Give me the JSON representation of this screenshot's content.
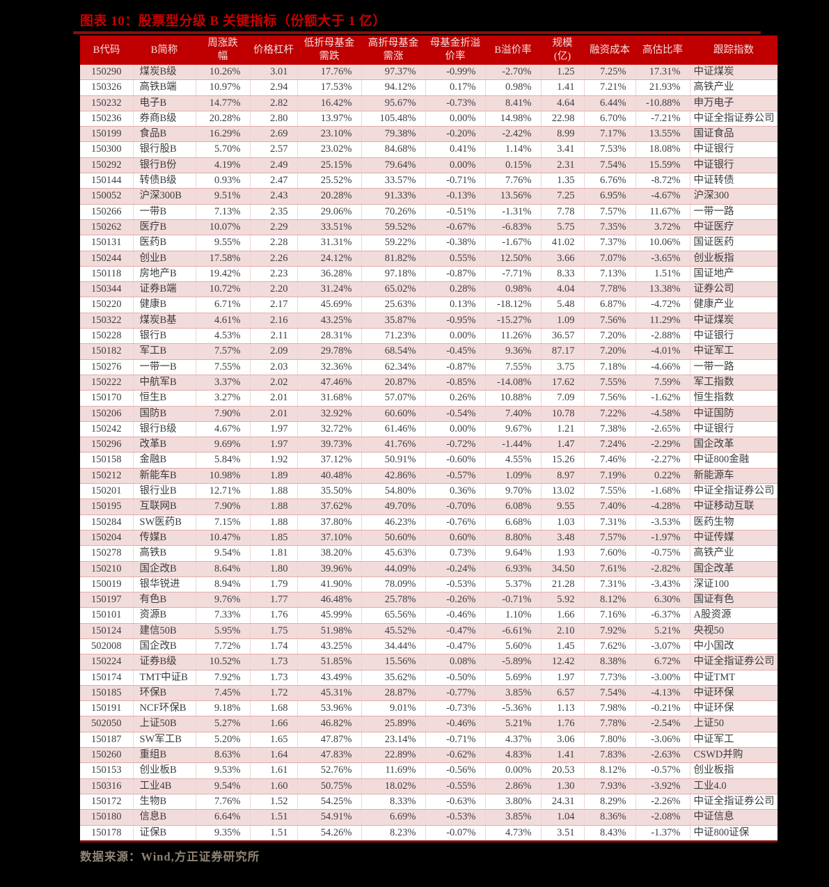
{
  "title": "图表 10：股票型分级 B 关键指标（份额大于 1 亿）",
  "source_note": "数据来源：Wind,方正证券研究所",
  "colors": {
    "page_background": "#000000",
    "title_red": "#cc0000",
    "header_background": "#c00000",
    "header_text": "#f3dedd",
    "row_pink": "#f2dcdb",
    "row_white": "#ffffff",
    "row_border": "#e0aca9",
    "table_rule_dark_red": "#8e0d0d",
    "cell_text": "#3d3d3d",
    "source_text": "#8d8474"
  },
  "table": {
    "columns": [
      {
        "key": "code",
        "label": "B代码"
      },
      {
        "key": "name",
        "label": "B简称"
      },
      {
        "key": "weekly",
        "label": "周涨跌\n幅"
      },
      {
        "key": "lever",
        "label": "价格杠杆"
      },
      {
        "key": "low",
        "label": "低折母基金\n需跌"
      },
      {
        "key": "high",
        "label": "高折母基金\n需涨"
      },
      {
        "key": "parent",
        "label": "母基金折溢\n价率"
      },
      {
        "key": "bprem",
        "label": "B溢价率"
      },
      {
        "key": "scale",
        "label": "规模\n(亿)"
      },
      {
        "key": "fin",
        "label": "融资成本"
      },
      {
        "key": "over",
        "label": "高估比率"
      },
      {
        "key": "index",
        "label": "跟踪指数"
      }
    ],
    "rows": [
      [
        "150290",
        "煤炭B级",
        "10.26%",
        "3.01",
        "17.76%",
        "97.37%",
        "-0.99%",
        "-2.70%",
        "1.25",
        "7.25%",
        "17.31%",
        "中证煤炭"
      ],
      [
        "150326",
        "高铁B端",
        "10.97%",
        "2.94",
        "17.53%",
        "94.12%",
        "0.17%",
        "0.98%",
        "1.41",
        "7.21%",
        "21.93%",
        "高铁产业"
      ],
      [
        "150232",
        "电子B",
        "14.77%",
        "2.82",
        "16.42%",
        "95.67%",
        "-0.73%",
        "8.41%",
        "4.64",
        "6.44%",
        "-10.88%",
        "申万电子"
      ],
      [
        "150236",
        "券商B级",
        "20.28%",
        "2.80",
        "13.97%",
        "105.48%",
        "0.00%",
        "14.98%",
        "22.98",
        "6.70%",
        "-7.21%",
        "中证全指证券公司"
      ],
      [
        "150199",
        "食品B",
        "16.29%",
        "2.69",
        "23.10%",
        "79.38%",
        "-0.20%",
        "-2.42%",
        "8.99",
        "7.17%",
        "13.55%",
        "国证食品"
      ],
      [
        "150300",
        "银行股B",
        "5.70%",
        "2.57",
        "23.02%",
        "84.68%",
        "0.41%",
        "1.14%",
        "3.41",
        "7.53%",
        "18.08%",
        "中证银行"
      ],
      [
        "150292",
        "银行B份",
        "4.19%",
        "2.49",
        "25.15%",
        "79.64%",
        "0.00%",
        "0.15%",
        "2.31",
        "7.54%",
        "15.59%",
        "中证银行"
      ],
      [
        "150144",
        "转债B级",
        "0.93%",
        "2.47",
        "25.52%",
        "33.57%",
        "-0.71%",
        "7.76%",
        "1.35",
        "6.76%",
        "-8.72%",
        "中证转债"
      ],
      [
        "150052",
        "沪深300B",
        "9.51%",
        "2.43",
        "20.28%",
        "91.33%",
        "-0.13%",
        "13.56%",
        "7.25",
        "6.95%",
        "-4.67%",
        "沪深300"
      ],
      [
        "150266",
        "一带B",
        "7.13%",
        "2.35",
        "29.06%",
        "70.26%",
        "-0.51%",
        "-1.31%",
        "7.78",
        "7.57%",
        "11.67%",
        "一带一路"
      ],
      [
        "150262",
        "医疗B",
        "10.07%",
        "2.29",
        "33.51%",
        "59.52%",
        "-0.67%",
        "-6.83%",
        "5.75",
        "7.35%",
        "3.72%",
        "中证医疗"
      ],
      [
        "150131",
        "医药B",
        "9.55%",
        "2.28",
        "31.31%",
        "59.22%",
        "-0.38%",
        "-1.67%",
        "41.02",
        "7.37%",
        "10.06%",
        "国证医药"
      ],
      [
        "150244",
        "创业B",
        "17.58%",
        "2.26",
        "24.12%",
        "81.82%",
        "0.55%",
        "12.50%",
        "3.66",
        "7.07%",
        "-3.65%",
        "创业板指"
      ],
      [
        "150118",
        "房地产B",
        "19.42%",
        "2.23",
        "36.28%",
        "97.18%",
        "-0.87%",
        "-7.71%",
        "8.33",
        "7.13%",
        "1.51%",
        "国证地产"
      ],
      [
        "150344",
        "证券B端",
        "10.72%",
        "2.20",
        "31.24%",
        "65.02%",
        "0.28%",
        "0.98%",
        "4.04",
        "7.78%",
        "13.38%",
        "证券公司"
      ],
      [
        "150220",
        "健康B",
        "6.71%",
        "2.17",
        "45.69%",
        "25.63%",
        "0.13%",
        "-18.12%",
        "5.48",
        "6.87%",
        "-4.72%",
        "健康产业"
      ],
      [
        "150322",
        "煤炭B基",
        "4.61%",
        "2.16",
        "43.25%",
        "35.87%",
        "-0.95%",
        "-15.27%",
        "1.09",
        "7.56%",
        "11.29%",
        "中证煤炭"
      ],
      [
        "150228",
        "银行B",
        "4.53%",
        "2.11",
        "28.31%",
        "71.23%",
        "0.00%",
        "11.26%",
        "36.57",
        "7.20%",
        "-2.88%",
        "中证银行"
      ],
      [
        "150182",
        "军工B",
        "7.57%",
        "2.09",
        "29.78%",
        "68.54%",
        "-0.45%",
        "9.36%",
        "87.17",
        "7.20%",
        "-4.01%",
        "中证军工"
      ],
      [
        "150276",
        "一带一B",
        "7.55%",
        "2.03",
        "32.36%",
        "62.34%",
        "-0.87%",
        "7.55%",
        "3.75",
        "7.18%",
        "-4.66%",
        "一带一路"
      ],
      [
        "150222",
        "中航军B",
        "3.37%",
        "2.02",
        "47.46%",
        "20.87%",
        "-0.85%",
        "-14.08%",
        "17.62",
        "7.55%",
        "7.59%",
        "军工指数"
      ],
      [
        "150170",
        "恒生B",
        "3.27%",
        "2.01",
        "31.68%",
        "57.07%",
        "0.26%",
        "10.88%",
        "7.09",
        "7.56%",
        "-1.62%",
        "恒生指数"
      ],
      [
        "150206",
        "国防B",
        "7.90%",
        "2.01",
        "32.92%",
        "60.60%",
        "-0.54%",
        "7.40%",
        "10.78",
        "7.22%",
        "-4.58%",
        "中证国防"
      ],
      [
        "150242",
        "银行B级",
        "4.67%",
        "1.97",
        "32.72%",
        "61.46%",
        "0.00%",
        "9.67%",
        "1.21",
        "7.38%",
        "-2.65%",
        "中证银行"
      ],
      [
        "150296",
        "改革B",
        "9.69%",
        "1.97",
        "39.73%",
        "41.76%",
        "-0.72%",
        "-1.44%",
        "1.47",
        "7.24%",
        "-2.29%",
        "国企改革"
      ],
      [
        "150158",
        "金融B",
        "5.84%",
        "1.92",
        "37.12%",
        "50.91%",
        "-0.60%",
        "4.55%",
        "15.26",
        "7.46%",
        "-2.27%",
        "中证800金融"
      ],
      [
        "150212",
        "新能车B",
        "10.98%",
        "1.89",
        "40.48%",
        "42.86%",
        "-0.57%",
        "1.09%",
        "8.97",
        "7.19%",
        "0.22%",
        "新能源车"
      ],
      [
        "150201",
        "银行业B",
        "12.71%",
        "1.88",
        "35.50%",
        "54.80%",
        "0.36%",
        "9.70%",
        "13.02",
        "7.55%",
        "-1.68%",
        "中证全指证券公司"
      ],
      [
        "150195",
        "互联网B",
        "7.90%",
        "1.88",
        "37.62%",
        "49.70%",
        "-0.70%",
        "6.08%",
        "9.55",
        "7.40%",
        "-4.28%",
        "中证移动互联"
      ],
      [
        "150284",
        "SW医药B",
        "7.15%",
        "1.88",
        "37.80%",
        "46.23%",
        "-0.76%",
        "6.68%",
        "1.03",
        "7.31%",
        "-3.53%",
        "医药生物"
      ],
      [
        "150204",
        "传媒B",
        "10.47%",
        "1.85",
        "37.10%",
        "50.60%",
        "0.60%",
        "8.80%",
        "3.48",
        "7.57%",
        "-1.97%",
        "中证传媒"
      ],
      [
        "150278",
        "高铁B",
        "9.54%",
        "1.81",
        "38.20%",
        "45.63%",
        "0.73%",
        "9.64%",
        "1.93",
        "7.60%",
        "-0.75%",
        "高铁产业"
      ],
      [
        "150210",
        "国企改B",
        "8.64%",
        "1.80",
        "39.96%",
        "44.09%",
        "-0.24%",
        "6.93%",
        "34.50",
        "7.61%",
        "-2.82%",
        "国企改革"
      ],
      [
        "150019",
        "银华锐进",
        "8.94%",
        "1.79",
        "41.90%",
        "78.09%",
        "-0.53%",
        "5.37%",
        "21.28",
        "7.31%",
        "-3.43%",
        "深证100"
      ],
      [
        "150197",
        "有色B",
        "9.76%",
        "1.77",
        "46.48%",
        "25.78%",
        "-0.26%",
        "-0.71%",
        "5.92",
        "8.12%",
        "6.30%",
        "国证有色"
      ],
      [
        "150101",
        "资源B",
        "7.33%",
        "1.76",
        "45.99%",
        "65.56%",
        "-0.46%",
        "1.10%",
        "1.66",
        "7.16%",
        "-6.37%",
        "A股资源"
      ],
      [
        "150124",
        "建信50B",
        "5.95%",
        "1.75",
        "51.98%",
        "45.52%",
        "-0.47%",
        "-6.61%",
        "2.10",
        "7.92%",
        "5.21%",
        "央视50"
      ],
      [
        "502008",
        "国企改B",
        "7.72%",
        "1.74",
        "43.25%",
        "34.44%",
        "-0.47%",
        "5.60%",
        "1.45",
        "7.62%",
        "-3.07%",
        "中小国改"
      ],
      [
        "150224",
        "证券B级",
        "10.52%",
        "1.73",
        "51.85%",
        "15.56%",
        "0.08%",
        "-5.89%",
        "12.42",
        "8.38%",
        "6.72%",
        "中证全指证券公司"
      ],
      [
        "150174",
        "TMT中证B",
        "7.92%",
        "1.73",
        "43.49%",
        "35.62%",
        "-0.50%",
        "5.69%",
        "1.97",
        "7.73%",
        "-3.00%",
        "中证TMT"
      ],
      [
        "150185",
        "环保B",
        "7.45%",
        "1.72",
        "45.31%",
        "28.87%",
        "-0.77%",
        "3.85%",
        "6.57",
        "7.54%",
        "-4.13%",
        "中证环保"
      ],
      [
        "150191",
        "NCF环保B",
        "9.18%",
        "1.68",
        "53.96%",
        "9.01%",
        "-0.73%",
        "-5.36%",
        "1.13",
        "7.98%",
        "-0.21%",
        "中证环保"
      ],
      [
        "502050",
        "上证50B",
        "5.27%",
        "1.66",
        "46.82%",
        "25.89%",
        "-0.46%",
        "5.21%",
        "1.76",
        "7.78%",
        "-2.54%",
        "上证50"
      ],
      [
        "150187",
        "SW军工B",
        "5.20%",
        "1.65",
        "47.87%",
        "23.14%",
        "-0.71%",
        "4.37%",
        "3.06",
        "7.80%",
        "-3.06%",
        "中证军工"
      ],
      [
        "150260",
        "重组B",
        "8.63%",
        "1.64",
        "47.83%",
        "22.89%",
        "-0.62%",
        "4.83%",
        "1.41",
        "7.83%",
        "-2.63%",
        "CSWD并购"
      ],
      [
        "150153",
        "创业板B",
        "9.53%",
        "1.61",
        "52.76%",
        "11.69%",
        "-0.56%",
        "0.00%",
        "20.53",
        "8.12%",
        "-0.57%",
        "创业板指"
      ],
      [
        "150316",
        "工业4B",
        "9.54%",
        "1.60",
        "50.75%",
        "18.02%",
        "-0.55%",
        "2.86%",
        "1.30",
        "7.93%",
        "-3.92%",
        "工业4.0"
      ],
      [
        "150172",
        "生物B",
        "7.76%",
        "1.52",
        "54.25%",
        "8.33%",
        "-0.63%",
        "3.80%",
        "24.31",
        "8.29%",
        "-2.26%",
        "中证全指证券公司"
      ],
      [
        "150180",
        "信息B",
        "6.64%",
        "1.51",
        "54.91%",
        "6.69%",
        "-0.53%",
        "3.85%",
        "1.04",
        "8.36%",
        "-2.08%",
        "中证信息"
      ],
      [
        "150178",
        "证保B",
        "9.35%",
        "1.51",
        "54.26%",
        "8.23%",
        "-0.07%",
        "4.73%",
        "3.51",
        "8.43%",
        "-1.37%",
        "中证800证保"
      ]
    ]
  }
}
